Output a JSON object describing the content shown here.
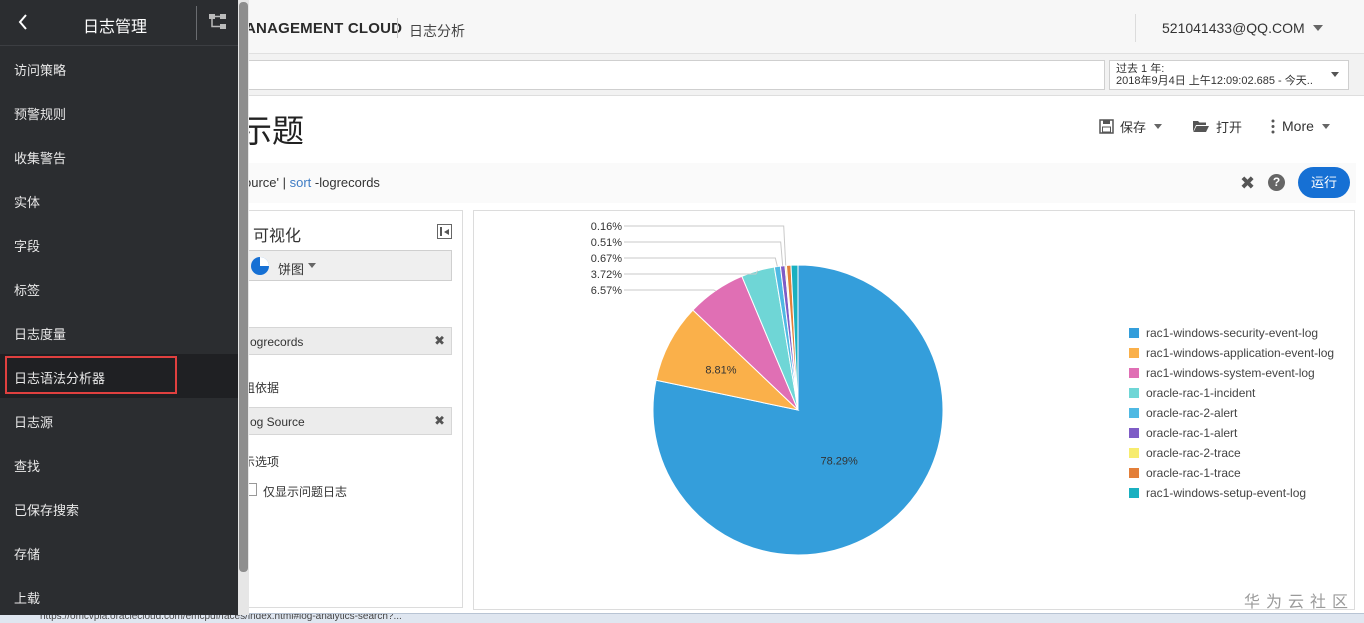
{
  "header": {
    "brand": "ANAGEMENT CLOUD",
    "section": "日志分析",
    "user": "521041433@QQ.COM"
  },
  "search": {
    "value": "",
    "placeholder": ""
  },
  "time_range": {
    "line1": "过去 1 年:",
    "line2": "2018年9月4日 上午12:09:02.685 - 今天.."
  },
  "page": {
    "title": "示题"
  },
  "toolbar": {
    "save_label": "保存",
    "open_label": "打开",
    "more_label": "More"
  },
  "query": {
    "part1": "ource' | ",
    "keyword": "sort",
    "part2": " -logrecords",
    "run_label": "运行"
  },
  "viz_panel": {
    "title": "可视化",
    "chart_type": "饼图",
    "metric_chip": "ogrecords",
    "group_label": "组依据",
    "group_chip": "og Source",
    "options_label": "示选项",
    "checkbox_label": "仅显示问题日志"
  },
  "chart_data": {
    "type": "pie",
    "series": [
      {
        "name": "rac1-windows-security-event-log",
        "value": 78.29,
        "label": "78.29%",
        "color": "#349edb"
      },
      {
        "name": "rac1-windows-application-event-log",
        "value": 8.81,
        "label": "8.81%",
        "color": "#fab04a"
      },
      {
        "name": "rac1-windows-system-event-log",
        "value": 6.57,
        "label": "6.57%",
        "color": "#e06fb4"
      },
      {
        "name": "oracle-rac-1-incident",
        "value": 3.72,
        "label": "3.72%",
        "color": "#6fd6d6"
      },
      {
        "name": "oracle-rac-2-alert",
        "value": 0.67,
        "label": "0.67%",
        "color": "#4fb9e3"
      },
      {
        "name": "oracle-rac-1-alert",
        "value": 0.51,
        "label": "0.51%",
        "color": "#7e5cc6"
      },
      {
        "name": "oracle-rac-2-trace",
        "value": 0.16,
        "label": "0.16%",
        "color": "#f7ec6e"
      },
      {
        "name": "oracle-rac-1-trace",
        "value": 0.5,
        "label": "",
        "color": "#e37f3a"
      },
      {
        "name": "rac1-windows-setup-event-log",
        "value": 0.77,
        "label": "",
        "color": "#1ab0c0"
      }
    ],
    "legend_position": "right"
  },
  "sidebar": {
    "title": "日志管理",
    "items": [
      {
        "label": "访问策略",
        "name": "sidebar-item-access-policy"
      },
      {
        "label": "预警规则",
        "name": "sidebar-item-alert-rules"
      },
      {
        "label": "收集警告",
        "name": "sidebar-item-collection-warnings"
      },
      {
        "label": "实体",
        "name": "sidebar-item-entities"
      },
      {
        "label": "字段",
        "name": "sidebar-item-fields"
      },
      {
        "label": "标签",
        "name": "sidebar-item-labels"
      },
      {
        "label": "日志度量",
        "name": "sidebar-item-log-metrics"
      },
      {
        "label": "日志语法分析器",
        "name": "sidebar-item-log-parsers"
      },
      {
        "label": "日志源",
        "name": "sidebar-item-log-sources"
      },
      {
        "label": "查找",
        "name": "sidebar-item-lookups"
      },
      {
        "label": "已保存搜索",
        "name": "sidebar-item-saved-searches"
      },
      {
        "label": "存储",
        "name": "sidebar-item-storage"
      },
      {
        "label": "上载",
        "name": "sidebar-item-uploads"
      }
    ],
    "active_index": 7
  },
  "watermark": "华为云社区",
  "status_bar": {
    "url": "https://omcvpla.oraclecloud.com/emcpdf/faces/index.html#log-analytics-search?..."
  }
}
